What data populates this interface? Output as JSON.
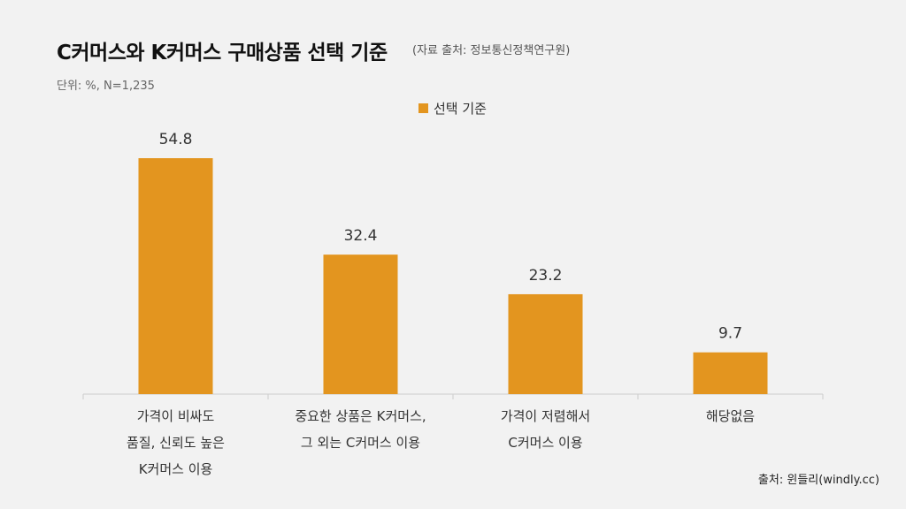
{
  "header": {
    "title": "C커머스와 K커머스 구매상품 선택 기준",
    "source_note": "(자료 출처: 정보통신정책연구원)",
    "unit": "단위: %,  N=1,235"
  },
  "footer": {
    "credit": "출처: 윈들리(windly.cc)"
  },
  "colors": {
    "bar": "#e3951f",
    "axis": "#cccccc",
    "background": "#f2f2f2"
  },
  "chart_data": {
    "type": "bar",
    "title": "C커머스와 K커머스 구매상품 선택 기준",
    "categories": [
      [
        "가격이 비싸도",
        "품질, 신뢰도 높은",
        "K커머스 이용"
      ],
      [
        "중요한 상품은 K커머스,",
        "그 외는 C커머스 이용"
      ],
      [
        "가격이 저렴해서",
        "C커머스 이용"
      ],
      [
        "해당없음"
      ]
    ],
    "series": [
      {
        "name": "선택 기준",
        "values": [
          54.8,
          32.4,
          23.2,
          9.7
        ]
      }
    ],
    "value_labels": [
      "54.8",
      "32.4",
      "23.2",
      "9.7"
    ],
    "ylim": [
      0,
      60
    ],
    "legend": "top-center",
    "grid": false
  }
}
